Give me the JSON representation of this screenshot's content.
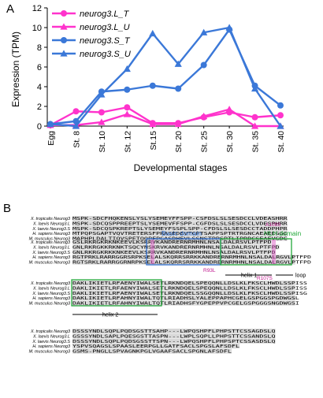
{
  "panel_a_label": "A",
  "panel_b_label": "B",
  "colors": {
    "pink": "#ff33cc",
    "blue": "#3b78d8",
    "conserved": "#b8b8b8",
    "basic_domain_box": "#2f6fd0",
    "hlh_domain_box": "#22a83a",
    "mutation_text": "#c0188e",
    "mutation_highlight": "#e060c8"
  },
  "chart_data": {
    "type": "line",
    "xlabel": "Developmental stages",
    "ylabel": "Expression (TPM)",
    "ylim": [
      0,
      12
    ],
    "yticks": [
      0,
      2,
      4,
      6,
      8,
      10,
      12
    ],
    "categories": [
      "Egg",
      "St. 8",
      "St. 10",
      "St. 12",
      "St.15",
      "St. 20",
      "St. 25",
      "St. 30",
      "St. 35",
      "St. 40"
    ],
    "legend_position": "top-left",
    "series": [
      {
        "name": "neurog3.L_T",
        "color": "#ff33cc",
        "marker": "circle",
        "values": [
          0.1,
          1.5,
          1.4,
          1.9,
          0.3,
          0.3,
          0.9,
          1.4,
          0.9,
          1.1
        ]
      },
      {
        "name": "neurog3.L_U",
        "color": "#ff33cc",
        "marker": "triangle",
        "values": [
          0.1,
          0.1,
          0.4,
          1.2,
          0.2,
          0.2,
          1.0,
          1.7,
          0.0,
          0.0
        ]
      },
      {
        "name": "neurog3.S_T",
        "color": "#3b78d8",
        "marker": "circle",
        "values": [
          0.2,
          0.5,
          3.5,
          3.7,
          4.1,
          3.8,
          6.2,
          9.8,
          4.1,
          2.1
        ]
      },
      {
        "name": "neurog3.S_U",
        "color": "#3b78d8",
        "marker": "triangle",
        "values": [
          0.2,
          0.0,
          3.2,
          5.8,
          9.4,
          6.3,
          9.5,
          10.0,
          3.8,
          0.0
        ]
      }
    ]
  },
  "alignment": {
    "blocks": [
      {
        "rows": [
          {
            "species": "X. tropicalis Neurog3",
            "seq": "MSPK-SDCFHQKENSLYSLYSEMEYFFSPP-CSFDSLSLSESDCCLVDEASHRR"
          },
          {
            "species": "X. laevis Neurog3.L",
            "seq": "MSPK-SDCQSPPREEPTSLYSEMEVFFSPP-CGFDSLSLSESDCCLVDESPHRR"
          },
          {
            "species": "X. laevis Neurog3.S",
            "seq": "MSPK-SDCQSPKREPTSLYSEMEYFSSPLSPP-CFDSLSLSESDCCTADDPHPR"
          },
          {
            "species": "H. sapiens Neurog3",
            "seq": "MTPQPSGAPTVQVTRETERSFPRASEDEVTCPTSAPPSPTRTRGNCAEAEEGGC"
          },
          {
            "species": "M. musculus Neurog3",
            "seq": "MAPHPLDALTIQVSPETQQPFPGASDHEVLSSNSTPPSPTLIPRDCSEAEVGDC"
          }
        ]
      },
      {
        "rows": [
          {
            "species": "X. tropicalis Neurog3",
            "seq": "GSLRKRGKRKNKEEVLKSRRVKANDRERNRMHNLNSALDALRSVLPTFPD"
          },
          {
            "species": "X. laevis Neurog3.L",
            "seq": "GNLRKRGKKRKNKTSQCYNSKRVKANDRERNRMHNLNSALDALRSVLPTFPD"
          },
          {
            "species": "X. laevis Neurog3.S",
            "seq": "GNLRKRGKRKKNKEEVLKSRRVKANDRERNRMHNLNSALDALRSVLPTFPD"
          },
          {
            "species": "H. sapiens Neurog3",
            "seq": "RGTPRKLRARRGGRSRPKSELALSKQRRSRRKKANDRERNRMHNLNSALDALRGVLPTFPD"
          },
          {
            "species": "M. musculus Neurog3",
            "seq": "RGTSRKLRARRGGRNRPKSELALSKQRRSRRKKANDRERNRMHNLNSALDALRGVLPTFPD"
          }
        ],
        "labels": {
          "basic": "Basic domain",
          "hlh": "HLH domain",
          "mut_a": "A108S",
          "mut_r93l": "R93L",
          "mut_r107s": "R107S",
          "helix1": "helix 1",
          "loop": "loop"
        }
      },
      {
        "rows": [
          {
            "species": "X. tropicalis Neurog3",
            "seq": "DAKLIKIETLRFAENYIWALSETLRKNDQELSPEQQNLLDSLKLFKSCLHWDLSSPISS"
          },
          {
            "species": "X. laevis Neurog3.L",
            "seq": "DAKLIKIETLRFAENYIWALSETLRKNDQELSPEQQNLLDSLKLFKSCLHWDLSSPISS"
          },
          {
            "species": "X. laevis Neurog3.S",
            "seq": "DAKLIKIETLRFAENYIWALSETLRKNDQELSSGQQNLLDSLKLFKSCLHWDLSSPISG"
          },
          {
            "species": "H. sapiens Neurog3",
            "seq": "DAKLIKIETLRFAHNYIWALTQTLRIADHSLYALEPPAPHCGELGSPGGSPGDWGSL"
          },
          {
            "species": "M. musculus Neurog3",
            "seq": "DAKLIKIETLRFAHNYIWALTQTLRIADHSFYGPEPPVPCGELGSPGGGSNGDWGSI"
          }
        ],
        "labels": {
          "helix2": "helix 2"
        }
      },
      {
        "rows": [
          {
            "species": "X. tropicalis Neurog3",
            "seq": "DSSSYNDLSQPLPQDSGSTTSAHP---LWPQSHPFLPHPSTTCSSAGDSLQ"
          },
          {
            "species": "X. laevis Neurog3.L",
            "seq": "GSSSYNDLSAPLPQESGSTTASPN---LWPLSQPLLPHPSTTCSSANDSLQ"
          },
          {
            "species": "X. laevis Neurog3.S",
            "seq": "DSSSYNDLSQPLPQDSGSSTTSPN---LWPQSHPFLPHPSPTCSSASDSLQ"
          },
          {
            "species": "H. sapiens Neurog3",
            "seq": "YSPVSQAGSLSPAASLEERPGLLGATFSACLSPGSLAFSDFL"
          },
          {
            "species": "M. musculus Neurog3",
            "seq": "GSMS-PNGLLSPVAGNKPGLVGAAFSACLSPGNLAFSDFL"
          }
        ]
      }
    ]
  }
}
